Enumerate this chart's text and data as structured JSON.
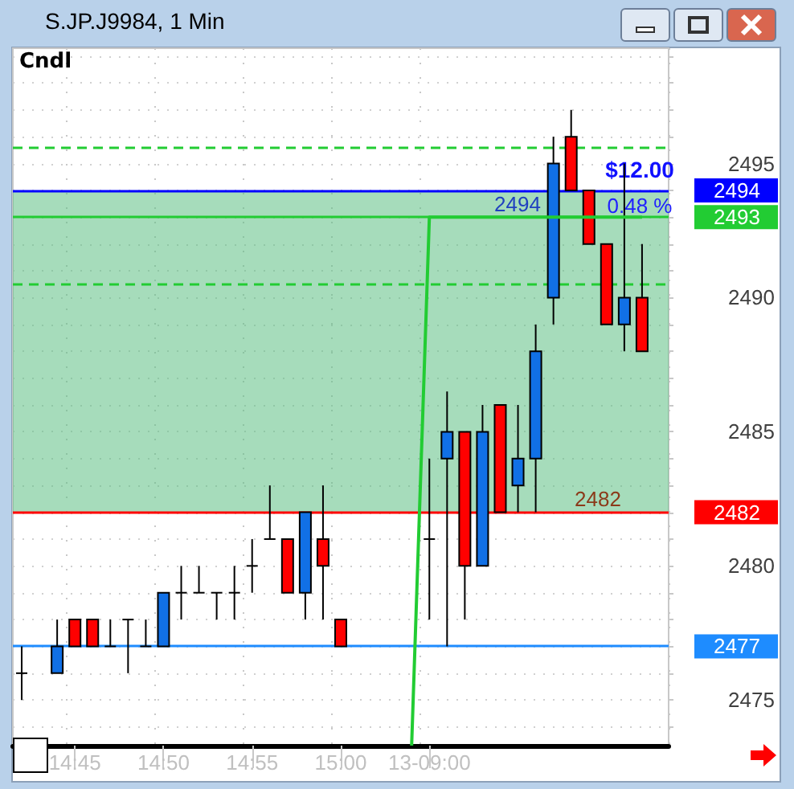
{
  "chart_data": {
    "type": "candlestick",
    "title": "S.JP.J9984, 1 Min",
    "categories": [
      null,
      null,
      null,
      "14:45",
      null,
      null,
      null,
      null,
      "14:50",
      null,
      null,
      null,
      null,
      "14:55",
      null,
      null,
      null,
      null,
      "15:00",
      null,
      null,
      null,
      null,
      "13-09:00",
      null,
      null,
      null,
      null,
      null,
      null,
      null,
      null,
      null,
      null,
      null,
      null,
      null
    ],
    "ohlc": [
      [
        2476,
        2477,
        2475,
        2476
      ],
      null,
      [
        2476,
        2478,
        2476,
        2477
      ],
      [
        2478,
        2478,
        2477,
        2477
      ],
      [
        2478,
        2478,
        2477,
        2477
      ],
      [
        2477,
        2478,
        2477,
        2477
      ],
      [
        2478,
        2478,
        2476,
        2478
      ],
      [
        2477,
        2478,
        2477,
        2477
      ],
      [
        2477,
        2479,
        2477,
        2479
      ],
      [
        2479,
        2480,
        2478,
        2479
      ],
      [
        2479,
        2480,
        2479,
        2479
      ],
      [
        2479,
        2479,
        2478,
        2479
      ],
      [
        2479,
        2480,
        2478,
        2479
      ],
      [
        2480,
        2481,
        2479,
        2480
      ],
      [
        2481,
        2483,
        2481,
        2481
      ],
      [
        2481,
        2481,
        2479,
        2479
      ],
      [
        2479,
        2482,
        2478,
        2482
      ],
      [
        2481,
        2483,
        2478,
        2480
      ],
      [
        2478,
        2478,
        2477,
        2477
      ],
      null,
      null,
      null,
      null,
      [
        2481,
        2484,
        2478,
        2481
      ],
      [
        2484,
        2486.5,
        2477,
        2485
      ],
      [
        2485,
        2485,
        2478,
        2480
      ],
      [
        2480,
        2486,
        2480,
        2485
      ],
      [
        2486,
        2486,
        2482,
        2482
      ],
      [
        2483,
        2486,
        2482,
        2484
      ],
      [
        2484,
        2489,
        2482,
        2488
      ],
      [
        2490,
        2496,
        2489,
        2495
      ],
      [
        2496,
        2497,
        2494,
        2494
      ],
      [
        2494,
        2494,
        2492,
        2492
      ],
      [
        2492,
        2492,
        2489,
        2489
      ],
      [
        2489,
        2495,
        2488,
        2490
      ],
      [
        2490,
        2492,
        2488,
        2488
      ],
      null
    ],
    "series": [
      {
        "type": "line",
        "color": "#22cc33",
        "values": [
          null,
          null,
          null,
          null,
          null,
          null,
          null,
          null,
          null,
          null,
          null,
          null,
          null,
          null,
          null,
          null,
          null,
          null,
          null,
          null,
          null,
          null,
          2473.3,
          2493,
          2493,
          2493,
          2493,
          2493,
          2493,
          2493,
          2493,
          2493,
          2493,
          2493,
          2493,
          2493,
          null
        ]
      }
    ],
    "ylim": [
      2473.3,
      2499.3
    ],
    "yticks": [
      {
        "value": 2474,
        "label": null
      },
      2475,
      {
        "value": 2476,
        "label": null
      },
      {
        "value": 2477,
        "label": null
      },
      {
        "value": 2478,
        "label": null
      },
      {
        "value": 2479,
        "label": null
      },
      2480,
      {
        "value": 2481,
        "label": null
      },
      {
        "value": 2482,
        "label": null
      },
      {
        "value": 2483,
        "label": null
      },
      {
        "value": 2484,
        "label": null
      },
      2485,
      {
        "value": 2486,
        "label": null
      },
      {
        "value": 2487,
        "label": null
      },
      {
        "value": 2488,
        "label": null
      },
      {
        "value": 2489,
        "label": null
      },
      2490,
      {
        "value": 2491,
        "label": null
      },
      {
        "value": 2492,
        "label": null
      },
      {
        "value": 2493,
        "label": null
      },
      {
        "value": 2494,
        "label": null
      },
      2495,
      {
        "value": 2496,
        "label": null
      },
      {
        "value": 2497,
        "label": null
      },
      {
        "value": 2498,
        "label": null
      },
      {
        "value": 2499,
        "label": null
      }
    ],
    "grid": true,
    "ref_lines": [
      {
        "axis": "y",
        "value": 2477,
        "label": "2477",
        "color": "#1e8cff"
      },
      {
        "axis": "y",
        "value": 2494,
        "label": "2494",
        "color": "#0000ff"
      },
      {
        "axis": "y",
        "value": 2482,
        "label": "2482",
        "color": "#ff0000"
      },
      {
        "axis": "y",
        "value": 2493,
        "label": "2493",
        "color": "#22cc33"
      },
      {
        "axis": "y",
        "value": 2495.6,
        "color": "#22cc33",
        "line_style": "dashed"
      },
      {
        "axis": "y",
        "value": 2490.5,
        "color": "#22cc33",
        "line_style": "dashed"
      }
    ],
    "bands": [
      {
        "axis": "y",
        "from": 2482,
        "to": 2494,
        "color": "#5cbf84"
      }
    ],
    "annotations": [
      "Cndl",
      "$12.00",
      "0.48 %",
      "2494",
      "2482"
    ]
  }
}
